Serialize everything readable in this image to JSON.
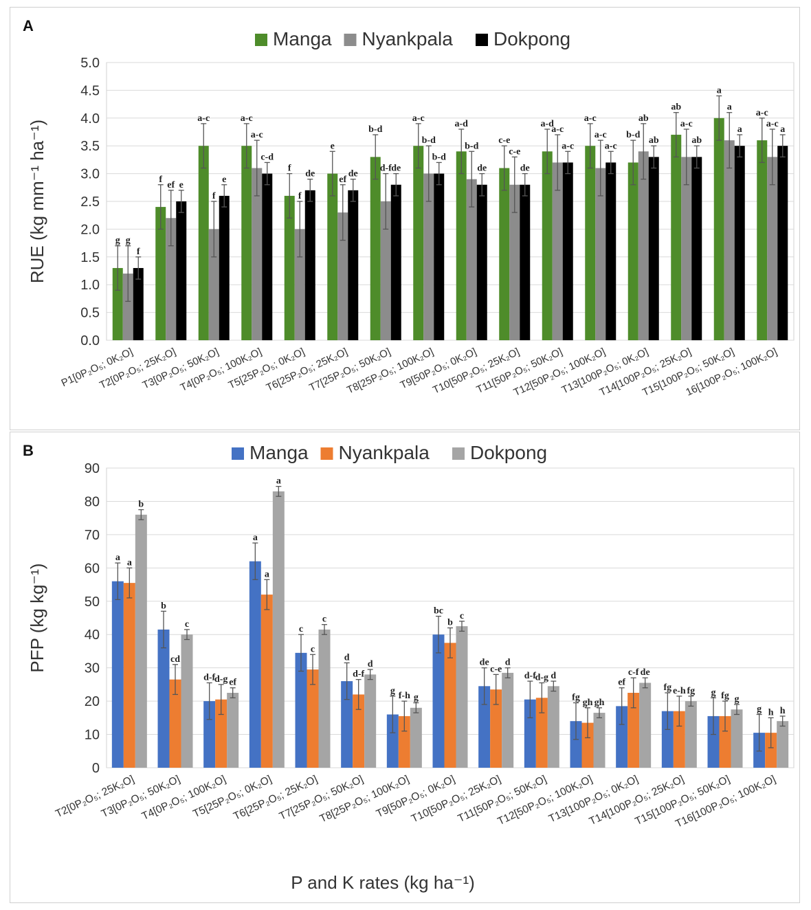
{
  "chart_data": [
    {
      "panel": "A",
      "type": "bar",
      "ylabel": "RUE (kg mm⁻¹ ha⁻¹)",
      "xlabel": "",
      "ylim": [
        0,
        5
      ],
      "yticks": [
        "0.0",
        "0.5",
        "1.0",
        "1.5",
        "2.0",
        "2.5",
        "3.0",
        "3.5",
        "4.0",
        "4.5",
        "5.0"
      ],
      "grid": true,
      "legend_position": "top",
      "categories": [
        "P1[0P₂O₅; 0K₂O]",
        "T2[0P₂O₅; 25K₂O]",
        "T3[0P₂O₅; 50K₂O]",
        "T4[0P₂O₅; 100K₂O]",
        "T5[25P₂O₅; 0K₂O]",
        "T6[25P₂O₅; 25K₂O]",
        "T7[25P₂O₅; 50K₂O]",
        "T8[25P₂O₅; 100K₂O]",
        "T9[50P₂O₅; 0K₂O]",
        "T10[50P₂O₅; 25K₂O]",
        "T11[50P₂O₅; 50K₂O]",
        "T12[50P₂O₅; 100K₂O]",
        "T13[100P₂O₅; 0K₂O]",
        "T14[100P₂O₅; 25K₂O]",
        "T15[100P₂O₅; 50K₂O]",
        "16[100P₂O₅; 100K₂O]"
      ],
      "series": [
        {
          "name": "Manga",
          "color": "#4e8c2a",
          "values": [
            1.3,
            2.4,
            3.5,
            3.5,
            2.6,
            3.0,
            3.3,
            3.5,
            3.4,
            3.1,
            3.4,
            3.5,
            3.2,
            3.7,
            4.0,
            3.6
          ],
          "errors": [
            0.4,
            0.4,
            0.4,
            0.4,
            0.4,
            0.4,
            0.4,
            0.4,
            0.4,
            0.4,
            0.4,
            0.4,
            0.4,
            0.4,
            0.4,
            0.4
          ],
          "letters": [
            "g",
            "f",
            "a-c",
            "a-c",
            "f",
            "e",
            "b-d",
            "a-c",
            "a-d",
            "c-e",
            "a-d",
            "a-c",
            "b-d",
            "ab",
            "a",
            "a-c"
          ]
        },
        {
          "name": "Nyankpala",
          "color": "#8c8c8c",
          "values": [
            1.2,
            2.2,
            2.0,
            3.1,
            2.0,
            2.3,
            2.5,
            3.0,
            2.9,
            2.8,
            3.2,
            3.1,
            3.4,
            3.3,
            3.6,
            3.3
          ],
          "errors": [
            0.5,
            0.5,
            0.5,
            0.5,
            0.5,
            0.5,
            0.5,
            0.5,
            0.5,
            0.5,
            0.5,
            0.5,
            0.5,
            0.5,
            0.5,
            0.5
          ],
          "letters": [
            "g",
            "ef",
            "f",
            "a-c",
            "f",
            "ef",
            "d-f",
            "b-d",
            "b-d",
            "c-e",
            "a-c",
            "a-c",
            "ab",
            "a-c",
            "a",
            "a-c"
          ]
        },
        {
          "name": "Dokpong",
          "color": "#000000",
          "values": [
            1.3,
            2.5,
            2.6,
            3.0,
            2.7,
            2.7,
            2.8,
            3.0,
            2.8,
            2.8,
            3.2,
            3.2,
            3.3,
            3.3,
            3.5,
            3.5
          ],
          "errors": [
            0.2,
            0.2,
            0.2,
            0.2,
            0.2,
            0.2,
            0.2,
            0.2,
            0.2,
            0.2,
            0.2,
            0.2,
            0.2,
            0.2,
            0.2,
            0.2
          ],
          "letters": [
            "f",
            "e",
            "e",
            "c-d",
            "de",
            "de",
            "de",
            "b-d",
            "de",
            "de",
            "a-c",
            "a-c",
            "ab",
            "ab",
            "a",
            "a"
          ]
        }
      ]
    },
    {
      "panel": "B",
      "type": "bar",
      "ylabel": "PFP (kg kg⁻¹)",
      "xlabel": "P and K rates (kg ha⁻¹)",
      "ylim": [
        0,
        90
      ],
      "yticks": [
        "0",
        "10",
        "20",
        "30",
        "40",
        "50",
        "60",
        "70",
        "80",
        "90"
      ],
      "grid": true,
      "legend_position": "top",
      "categories": [
        "T2[0P₂O₅; 25K₂O]",
        "T3[0P₂O₅; 50K₂O]",
        "T4[0P₂O₅; 100K₂O]",
        "T5[25P₂O₅; 0K₂O]",
        "T6[25P₂O₅; 25K₂O]",
        "T7[25P₂O₅; 50K₂O]",
        "T8[25P₂O₅; 100K₂O]",
        "T9[50P₂O₅; 0K₂O]",
        "T10[50P₂O₅; 25K₂O]",
        "T11[50P₂O₅; 50K₂O]",
        "T12[50P₂O₅; 100K₂O]",
        "T13[100P₂O₅; 0K₂O]",
        "T14[100P₂O₅; 25K₂O]",
        "T15[100P₂O₅; 50K₂O]",
        "T16[100P₂O₅; 100K₂O]"
      ],
      "series": [
        {
          "name": "Manga",
          "color": "#4472c4",
          "values": [
            56,
            41.5,
            20,
            62,
            34.5,
            26,
            16,
            40,
            24.5,
            20.5,
            14,
            18.5,
            17,
            15.5,
            10.5
          ],
          "errors": [
            5.5,
            5.5,
            5.5,
            5.5,
            5.5,
            5.5,
            5.5,
            5.5,
            5.5,
            5.5,
            5.5,
            5.5,
            5.5,
            5.5,
            5.5
          ],
          "letters": [
            "a",
            "b",
            "d-f",
            "a",
            "c",
            "d",
            "g",
            "bc",
            "de",
            "d-f",
            "fg",
            "ef",
            "fg",
            "g",
            "g"
          ]
        },
        {
          "name": "Nyankpala",
          "color": "#ed7d31",
          "values": [
            55.5,
            26.5,
            20.5,
            52,
            29.5,
            22,
            15.5,
            37.5,
            23.5,
            21,
            13.5,
            22.5,
            17,
            15.5,
            10.5
          ],
          "errors": [
            4.5,
            4.5,
            4.5,
            4.5,
            4.5,
            4.5,
            4.5,
            4.5,
            4.5,
            4.5,
            4.5,
            4.5,
            4.5,
            4.5,
            4.5
          ],
          "letters": [
            "a",
            "cd",
            "d-g",
            "a",
            "c",
            "d-f",
            "f-h",
            "b",
            "c-e",
            "d-g",
            "gh",
            "c-f",
            "e-h",
            "fg",
            "h"
          ]
        },
        {
          "name": "Dokpong",
          "color": "#a5a5a5",
          "values": [
            76,
            40,
            22.5,
            83,
            41.5,
            28,
            18,
            42.5,
            28.5,
            24.5,
            16.5,
            25.5,
            20,
            17.5,
            14
          ],
          "errors": [
            1.5,
            1.5,
            1.5,
            1.5,
            1.5,
            1.5,
            1.5,
            1.5,
            1.5,
            1.5,
            1.5,
            1.5,
            1.5,
            1.5,
            1.5
          ],
          "letters": [
            "b",
            "c",
            "ef",
            "a",
            "c",
            "d",
            "g",
            "c",
            "d",
            "d",
            "gh",
            "de",
            "fg",
            "g",
            "h"
          ]
        }
      ]
    }
  ],
  "panels": {
    "a_label": "A",
    "b_label": "B"
  }
}
